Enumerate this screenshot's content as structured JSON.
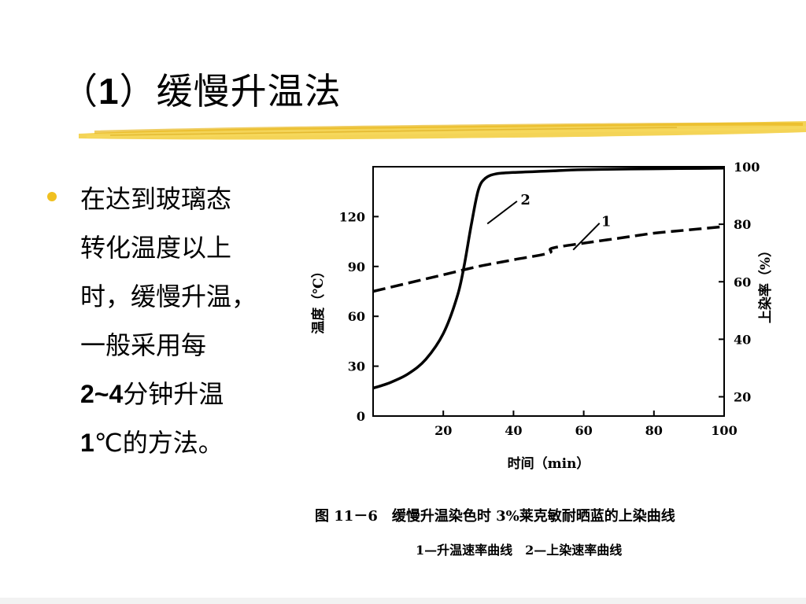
{
  "slide": {
    "title_prefix": "（",
    "title_num": "1",
    "title_close": "）",
    "title_text": "缓慢升温法",
    "bullet_line1": "在达到玻璃态",
    "bullet_line2": "转化温度以上",
    "bullet_line3": "时，缓慢升温，",
    "bullet_line4": "一般采用每",
    "bullet_line5_bold": "2~4",
    "bullet_line5_rest": "分钟升温",
    "bullet_line6_bold": "1",
    "bullet_line6_rest": "℃的方法。",
    "accent_color": "#f0c020"
  },
  "figure": {
    "caption": "图 11－6　缓慢升温染色时 3%莱克敏耐晒蓝的上染曲线",
    "legend_caption": "1—升温速率曲线　2—上染速率曲线",
    "curve_label_1": "1",
    "curve_label_2": "2"
  },
  "chart_data": {
    "type": "line",
    "title": "",
    "xlabel": "时间（min）",
    "ylabel": "温度（℃）",
    "y2label": "上染率（%）",
    "xlim": [
      0,
      100
    ],
    "ylim": [
      0,
      150
    ],
    "y2lim": [
      13.3,
      100
    ],
    "x_ticks": [
      "20",
      "40",
      "60",
      "80",
      "100"
    ],
    "y_ticks": [
      "0",
      "30",
      "60",
      "90",
      "120"
    ],
    "y2_ticks": [
      "20",
      "40",
      "60",
      "80",
      "100"
    ],
    "series": [
      {
        "name": "1",
        "axis": "left",
        "style": "dashed",
        "x": [
          0,
          10,
          20,
          30,
          40,
          50,
          51,
          60,
          70,
          80,
          90,
          100
        ],
        "y": [
          75,
          80,
          85,
          90,
          94,
          98,
          101,
          104,
          107,
          110,
          112,
          114
        ]
      },
      {
        "name": "2",
        "axis": "right",
        "style": "solid",
        "x": [
          0,
          5,
          10,
          15,
          20,
          24,
          26,
          28,
          30,
          32,
          35,
          40,
          50,
          60,
          80,
          100
        ],
        "y": [
          23,
          25,
          28,
          33,
          42,
          55,
          66,
          80,
          92,
          96,
          97.5,
          98,
          98.5,
          99,
          99.3,
          99.5
        ]
      }
    ]
  }
}
